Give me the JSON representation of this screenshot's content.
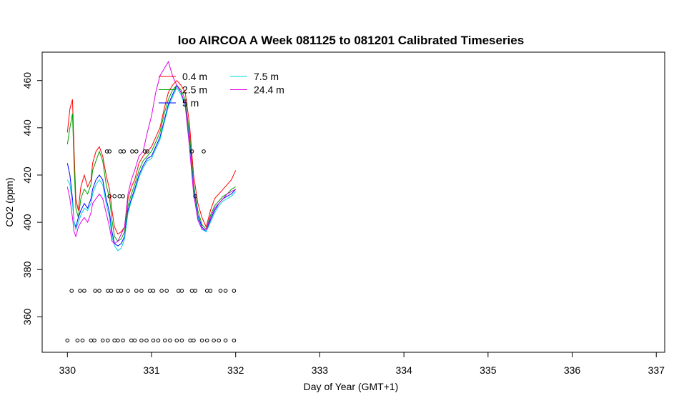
{
  "chart_data": {
    "type": "line",
    "title": "loo AIRCOA A  Week 081125 to 081201  Calibrated Timeseries",
    "xlabel": "Day of Year (GMT+1)",
    "ylabel": "CO2 (ppm)",
    "xlim": [
      329.7,
      337.1
    ],
    "ylim": [
      345,
      472
    ],
    "x_ticks": [
      330,
      331,
      332,
      333,
      334,
      335,
      336,
      337
    ],
    "y_ticks": [
      360,
      380,
      400,
      420,
      440,
      460
    ],
    "grid": false,
    "legend_position": "top-left",
    "series": [
      {
        "name": "0.4 m",
        "color": "#ff0000",
        "x": [
          330.0,
          330.03,
          330.06,
          330.08,
          330.1,
          330.13,
          330.16,
          330.2,
          330.24,
          330.28,
          330.3,
          330.34,
          330.38,
          330.42,
          330.46,
          330.5,
          330.53,
          330.56,
          330.6,
          330.64,
          330.68,
          330.72,
          330.76,
          330.8,
          330.85,
          330.9,
          330.95,
          331.0,
          331.05,
          331.1,
          331.15,
          331.2,
          331.25,
          331.3,
          331.35,
          331.4,
          331.45,
          331.5,
          331.55,
          331.6,
          331.65,
          331.7,
          331.75,
          331.8,
          331.85,
          331.9,
          331.95,
          332.0
        ],
        "y": [
          438,
          448,
          452,
          430,
          410,
          405,
          415,
          420,
          415,
          418,
          425,
          430,
          432,
          428,
          420,
          414,
          405,
          398,
          395,
          396,
          398,
          410,
          415,
          418,
          425,
          428,
          430,
          432,
          436,
          440,
          448,
          455,
          458,
          460,
          458,
          455,
          442,
          420,
          408,
          402,
          398,
          405,
          410,
          412,
          414,
          416,
          418,
          422
        ]
      },
      {
        "name": "2.5 m",
        "color": "#00a000",
        "x": [
          330.0,
          330.03,
          330.06,
          330.08,
          330.1,
          330.13,
          330.16,
          330.2,
          330.24,
          330.28,
          330.3,
          330.34,
          330.38,
          330.42,
          330.46,
          330.5,
          330.53,
          330.56,
          330.6,
          330.64,
          330.68,
          330.72,
          330.76,
          330.8,
          330.85,
          330.9,
          330.95,
          331.0,
          331.05,
          331.1,
          331.15,
          331.2,
          331.25,
          331.3,
          331.35,
          331.4,
          331.45,
          331.5,
          331.55,
          331.6,
          331.65,
          331.7,
          331.75,
          331.8,
          331.85,
          331.9,
          331.95,
          332.0
        ],
        "y": [
          433,
          440,
          446,
          424,
          406,
          402,
          410,
          414,
          412,
          416,
          422,
          426,
          430,
          426,
          416,
          410,
          401,
          394,
          392,
          393,
          396,
          407,
          412,
          416,
          422,
          426,
          428,
          430,
          434,
          438,
          446,
          452,
          456,
          458,
          456,
          452,
          438,
          416,
          405,
          399,
          397,
          403,
          407,
          409,
          411,
          412,
          414,
          415
        ]
      },
      {
        "name": "5 m",
        "color": "#0000ff",
        "x": [
          330.0,
          330.03,
          330.06,
          330.08,
          330.1,
          330.13,
          330.16,
          330.2,
          330.24,
          330.28,
          330.3,
          330.34,
          330.38,
          330.42,
          330.46,
          330.5,
          330.53,
          330.56,
          330.6,
          330.64,
          330.68,
          330.72,
          330.76,
          330.8,
          330.85,
          330.9,
          330.95,
          331.0,
          331.05,
          331.1,
          331.15,
          331.2,
          331.25,
          331.3,
          331.35,
          331.4,
          331.45,
          331.5,
          331.55,
          331.6,
          331.65,
          331.7,
          331.75,
          331.8,
          331.85,
          331.9,
          331.95,
          332.0
        ],
        "y": [
          425,
          420,
          410,
          400,
          398,
          402,
          405,
          408,
          406,
          410,
          414,
          418,
          420,
          418,
          410,
          404,
          396,
          391,
          390,
          391,
          394,
          405,
          410,
          414,
          420,
          424,
          427,
          428,
          432,
          436,
          443,
          450,
          454,
          458,
          455,
          450,
          435,
          414,
          403,
          398,
          396,
          401,
          405,
          408,
          410,
          411,
          412,
          414
        ]
      },
      {
        "name": "7.5 m",
        "color": "#00d0e0",
        "x": [
          330.0,
          330.03,
          330.06,
          330.08,
          330.1,
          330.13,
          330.16,
          330.2,
          330.24,
          330.28,
          330.3,
          330.34,
          330.38,
          330.42,
          330.46,
          330.5,
          330.53,
          330.56,
          330.6,
          330.64,
          330.68,
          330.72,
          330.76,
          330.8,
          330.85,
          330.9,
          330.95,
          331.0,
          331.05,
          331.1,
          331.15,
          331.2,
          331.25,
          331.3,
          331.35,
          331.4,
          331.45,
          331.5,
          331.55,
          331.6,
          331.65,
          331.7,
          331.75,
          331.8,
          331.85,
          331.9,
          331.95,
          332.0
        ],
        "y": [
          418,
          416,
          408,
          400,
          397,
          400,
          403,
          406,
          405,
          408,
          412,
          416,
          418,
          416,
          408,
          402,
          394,
          390,
          388,
          389,
          393,
          404,
          409,
          413,
          419,
          423,
          426,
          427,
          431,
          435,
          442,
          449,
          453,
          457,
          454,
          449,
          434,
          413,
          402,
          397,
          396,
          400,
          404,
          407,
          409,
          410,
          411,
          413
        ]
      },
      {
        "name": "24.4 m",
        "color": "#e000e0",
        "x": [
          330.0,
          330.03,
          330.06,
          330.08,
          330.1,
          330.13,
          330.16,
          330.2,
          330.24,
          330.28,
          330.3,
          330.34,
          330.38,
          330.42,
          330.46,
          330.5,
          330.53,
          330.56,
          330.6,
          330.64,
          330.68,
          330.72,
          330.76,
          330.8,
          330.85,
          330.9,
          330.95,
          331.0,
          331.05,
          331.1,
          331.15,
          331.2,
          331.25,
          331.3,
          331.35,
          331.4,
          331.45,
          331.5,
          331.55,
          331.6,
          331.65,
          331.7,
          331.75,
          331.8,
          331.85,
          331.9,
          331.95,
          332.0
        ],
        "y": [
          415,
          410,
          402,
          396,
          394,
          398,
          400,
          402,
          400,
          404,
          408,
          410,
          412,
          410,
          404,
          398,
          392,
          391,
          392,
          395,
          398,
          412,
          418,
          422,
          428,
          430,
          438,
          445,
          455,
          462,
          465,
          468,
          462,
          458,
          455,
          450,
          432,
          412,
          401,
          397,
          397,
          402,
          406,
          408,
          410,
          412,
          413,
          414
        ]
      }
    ],
    "points": {
      "name": "markers",
      "x": [
        330.05,
        330.15,
        330.2,
        330.33,
        330.38,
        330.48,
        330.52,
        330.6,
        330.64,
        330.72,
        330.82,
        330.88,
        330.98,
        331.02,
        331.12,
        331.18,
        331.32,
        331.36,
        331.48,
        331.52,
        331.66,
        331.7,
        331.82,
        331.88,
        331.98,
        330.0,
        330.12,
        330.18,
        330.28,
        330.32,
        330.42,
        330.48,
        330.56,
        330.6,
        330.66,
        330.76,
        330.8,
        330.88,
        330.94,
        331.02,
        331.08,
        331.16,
        331.22,
        331.3,
        331.36,
        331.46,
        331.5,
        331.6,
        331.66,
        331.74,
        331.8,
        331.88,
        331.98,
        330.47,
        330.5,
        330.63,
        330.67,
        330.77,
        330.82,
        330.92,
        330.95,
        331.48,
        331.62,
        330.5,
        330.56,
        330.62,
        330.66,
        331.52
      ],
      "y": [
        371,
        371,
        371,
        371,
        371,
        371,
        371,
        371,
        371,
        371,
        371,
        371,
        371,
        371,
        371,
        371,
        371,
        371,
        371,
        371,
        371,
        371,
        371,
        371,
        371,
        350,
        350,
        350,
        350,
        350,
        350,
        350,
        350,
        350,
        350,
        350,
        350,
        350,
        350,
        350,
        350,
        350,
        350,
        350,
        350,
        350,
        350,
        350,
        350,
        350,
        350,
        350,
        350,
        430,
        430,
        430,
        430,
        430,
        430,
        430,
        430,
        430,
        430,
        411,
        411,
        411,
        411,
        411
      ]
    }
  }
}
